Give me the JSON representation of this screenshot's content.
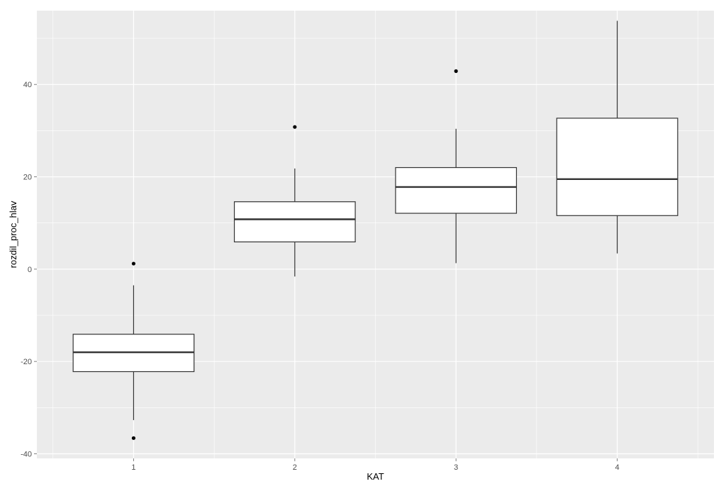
{
  "chart_data": {
    "type": "boxplot",
    "xlabel": "KAT",
    "ylabel": "rozdil_proc_hlav",
    "ylim": [
      -41,
      56
    ],
    "y_ticks": [
      -40,
      -20,
      0,
      20,
      40
    ],
    "y_tick_labels": [
      "-40",
      "-20",
      "0",
      "20",
      "40"
    ],
    "categories": [
      "1",
      "2",
      "3",
      "4"
    ],
    "boxes": [
      {
        "category": "1",
        "whisker_low": -32.7,
        "q1": -22.2,
        "median": -18.0,
        "q3": -14.1,
        "whisker_high": -3.5,
        "outliers": [
          1.2,
          -36.6
        ]
      },
      {
        "category": "2",
        "whisker_low": -1.6,
        "q1": 5.9,
        "median": 10.8,
        "q3": 14.6,
        "whisker_high": 21.8,
        "outliers": [
          30.8
        ]
      },
      {
        "category": "3",
        "whisker_low": 1.3,
        "q1": 12.1,
        "median": 17.8,
        "q3": 22.0,
        "whisker_high": 30.4,
        "outliers": [
          42.9
        ]
      },
      {
        "category": "4",
        "whisker_low": 3.4,
        "q1": 11.6,
        "median": 19.5,
        "q3": 32.7,
        "whisker_high": 53.8,
        "outliers": []
      }
    ],
    "grid": true,
    "legend": "none",
    "colors": {
      "panel": "#ebebeb",
      "grid": "#ffffff",
      "box_fill": "#ffffff",
      "box_stroke": "#333333",
      "point": "#000000"
    }
  }
}
